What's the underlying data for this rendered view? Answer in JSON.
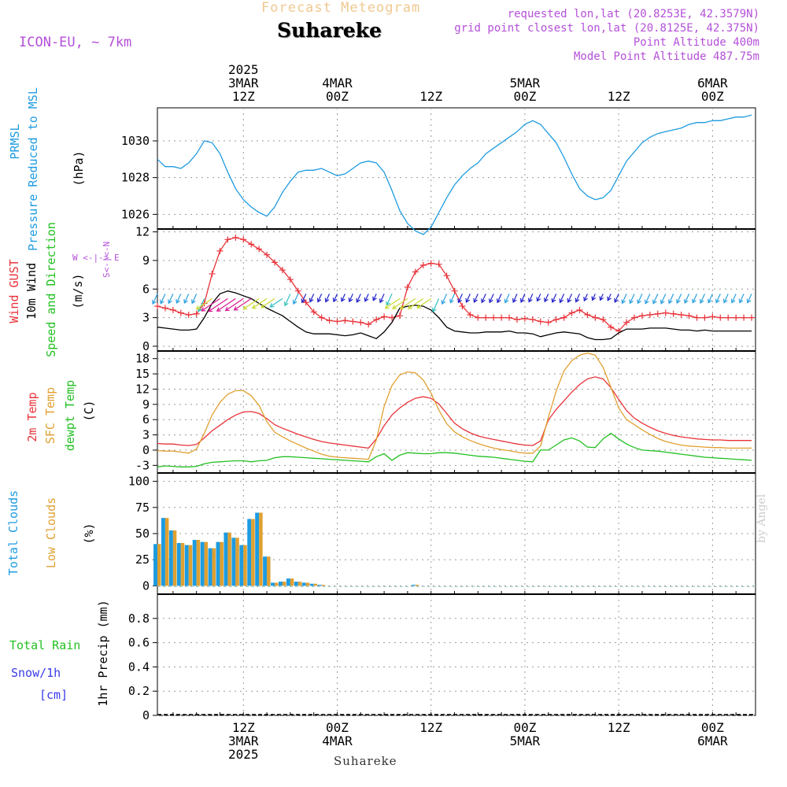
{
  "header": {
    "supertitle": "Forecast Meteogram",
    "title": "Suhareke",
    "model": "ICON-EU, ~ 7km",
    "info_lines": [
      "requested lon,lat (20.8253E, 42.3579N)",
      "grid point closest lon,lat (20.8125E, 42.375N)",
      "Point Altitude 400m",
      "Model Point Altitude 487.75m"
    ],
    "footer_title": "Suhareke",
    "watermark": "by Angel"
  },
  "colors": {
    "pressure": "#1e9be0",
    "gust": "#e8333a",
    "wind": "#000000",
    "temp2m": "#e8333a",
    "sfc": "#e0a030",
    "dewpt": "#22c022",
    "total_cloud": "#1e9be0",
    "low_cloud": "#e0a030",
    "rain": "#22c022",
    "snow": "#3a3ae8",
    "info": "#b450d8",
    "supertitle": "#f0c890"
  },
  "chart_data": [
    {
      "type": "line",
      "panel": "pressure",
      "ylabel_lines": [
        "PRMSL",
        "Pressure Reduced to MSL"
      ],
      "unit": "(hPa)",
      "ylim": [
        1025.2,
        1031.8
      ],
      "yticks": [
        1026,
        1028,
        1030
      ],
      "time_hours": [
        0,
        1,
        2,
        3,
        4,
        5,
        6,
        7,
        8,
        9,
        10,
        11,
        12,
        13,
        14,
        15,
        16,
        17,
        18,
        19,
        20,
        21,
        22,
        23,
        24,
        25,
        26,
        27,
        28,
        29,
        30,
        31,
        32,
        33,
        34,
        35,
        36,
        37,
        38,
        39,
        40,
        41,
        42,
        43,
        44,
        45,
        46,
        47,
        48,
        49,
        50,
        51,
        52,
        53,
        54,
        55,
        56,
        57,
        58,
        59,
        60,
        61,
        62,
        63,
        64,
        65,
        66,
        67,
        68,
        69,
        70,
        71,
        72,
        73,
        74,
        75,
        76
      ],
      "series": [
        {
          "values": [
            1029.0,
            1028.6,
            1028.6,
            1028.5,
            1028.8,
            1029.3,
            1030.0,
            1029.9,
            1029.3,
            1028.3,
            1027.4,
            1026.8,
            1026.4,
            1026.1,
            1025.9,
            1026.4,
            1027.2,
            1027.8,
            1028.3,
            1028.4,
            1028.4,
            1028.5,
            1028.3,
            1028.1,
            1028.2,
            1028.5,
            1028.8,
            1028.9,
            1028.8,
            1028.3,
            1027.3,
            1026.2,
            1025.5,
            1025.1,
            1024.9,
            1025.3,
            1026.1,
            1026.9,
            1027.6,
            1028.1,
            1028.5,
            1028.8,
            1029.3,
            1029.6,
            1029.9,
            1030.2,
            1030.5,
            1030.9,
            1031.1,
            1030.9,
            1030.4,
            1029.9,
            1029.1,
            1028.2,
            1027.4,
            1027.0,
            1026.8,
            1026.9,
            1027.3,
            1028.1,
            1028.9,
            1029.4,
            1029.9,
            1030.2,
            1030.4,
            1030.5,
            1030.6,
            1030.7,
            1030.9,
            1031.0,
            1031.0,
            1031.1,
            1031.1,
            1031.2,
            1031.3,
            1031.3,
            1031.4
          ]
        }
      ]
    },
    {
      "type": "line",
      "panel": "wind",
      "ylabel_lines": [
        "Wind GUST",
        "10m Wind",
        "Speed and Direction"
      ],
      "unit": "(m/s)",
      "compass": [
        "N",
        "W <-|-> E",
        "S"
      ],
      "ylim": [
        -0.5,
        12.3
      ],
      "yticks": [
        0,
        3,
        6,
        9,
        12
      ],
      "time_hours": [
        0,
        1,
        2,
        3,
        4,
        5,
        6,
        7,
        8,
        9,
        10,
        11,
        12,
        13,
        14,
        15,
        16,
        17,
        18,
        19,
        20,
        21,
        22,
        23,
        24,
        25,
        26,
        27,
        28,
        29,
        30,
        31,
        32,
        33,
        34,
        35,
        36,
        37,
        38,
        39,
        40,
        41,
        42,
        43,
        44,
        45,
        46,
        47,
        48,
        49,
        50,
        51,
        52,
        53,
        54,
        55,
        56,
        57,
        58,
        59,
        60,
        61,
        62,
        63,
        64,
        65,
        66,
        67,
        68,
        69,
        70,
        71,
        72,
        73,
        74,
        75,
        76
      ],
      "series": [
        {
          "name": "Wind GUST",
          "values": [
            4.2,
            4.0,
            3.8,
            3.5,
            3.3,
            3.4,
            4.5,
            7.6,
            10.0,
            11.2,
            11.4,
            11.2,
            10.7,
            10.2,
            9.6,
            8.8,
            8.0,
            7.0,
            5.8,
            4.6,
            3.6,
            3.0,
            2.7,
            2.6,
            2.7,
            2.6,
            2.5,
            2.3,
            2.8,
            3.1,
            3.0,
            3.2,
            6.2,
            7.8,
            8.5,
            8.7,
            8.6,
            7.4,
            5.8,
            4.2,
            3.3,
            3.0,
            3.0,
            3.0,
            3.0,
            3.0,
            2.8,
            2.9,
            2.8,
            2.6,
            2.5,
            2.8,
            3.0,
            3.5,
            3.8,
            3.3,
            3.0,
            2.8,
            2.0,
            1.6,
            2.5,
            3.0,
            3.2,
            3.3,
            3.4,
            3.5,
            3.4,
            3.3,
            3.2,
            3.0,
            3.0,
            3.1,
            3.0,
            3.0,
            3.0,
            3.0,
            3.0
          ]
        },
        {
          "name": "10m Wind",
          "values": [
            2.0,
            1.9,
            1.8,
            1.7,
            1.7,
            1.8,
            3.0,
            4.5,
            5.5,
            5.8,
            5.6,
            5.3,
            5.0,
            4.5,
            4.0,
            3.6,
            3.2,
            2.6,
            2.0,
            1.5,
            1.3,
            1.3,
            1.3,
            1.2,
            1.1,
            1.2,
            1.4,
            1.1,
            0.8,
            1.5,
            2.5,
            4.0,
            4.2,
            4.3,
            4.2,
            3.8,
            3.0,
            2.0,
            1.6,
            1.5,
            1.4,
            1.4,
            1.5,
            1.5,
            1.5,
            1.6,
            1.4,
            1.4,
            1.3,
            1.0,
            1.2,
            1.4,
            1.5,
            1.4,
            1.3,
            0.9,
            0.7,
            0.7,
            0.8,
            1.4,
            1.8,
            1.8,
            1.8,
            1.9,
            1.9,
            1.9,
            1.8,
            1.7,
            1.7,
            1.6,
            1.7,
            1.6,
            1.6,
            1.6,
            1.6,
            1.6,
            1.6
          ]
        }
      ]
    },
    {
      "type": "line",
      "panel": "temperature",
      "ylabel_lines": [
        "2m Temp",
        "SFC Temp",
        "dewpt Temp"
      ],
      "unit": "(C)",
      "ylim": [
        -4.5,
        19.5
      ],
      "yticks": [
        -3,
        0,
        3,
        6,
        9,
        12,
        15,
        18
      ],
      "time_hours": [
        0,
        1,
        2,
        3,
        4,
        5,
        6,
        7,
        8,
        9,
        10,
        11,
        12,
        13,
        14,
        15,
        16,
        17,
        18,
        19,
        20,
        21,
        22,
        23,
        24,
        25,
        26,
        27,
        28,
        29,
        30,
        31,
        32,
        33,
        34,
        35,
        36,
        37,
        38,
        39,
        40,
        41,
        42,
        43,
        44,
        45,
        46,
        47,
        48,
        49,
        50,
        51,
        52,
        53,
        54,
        55,
        56,
        57,
        58,
        59,
        60,
        61,
        62,
        63,
        64,
        65,
        66,
        67,
        68,
        69,
        70,
        71,
        72,
        73,
        74,
        75,
        76
      ],
      "series": [
        {
          "name": "2m Temp",
          "values": [
            1.3,
            1.2,
            1.2,
            1.0,
            0.9,
            1.1,
            2.4,
            3.8,
            4.9,
            6.0,
            6.9,
            7.5,
            7.6,
            7.2,
            6.2,
            5.0,
            4.3,
            3.7,
            3.1,
            2.6,
            2.1,
            1.7,
            1.4,
            1.2,
            1.0,
            0.8,
            0.6,
            0.4,
            2.2,
            4.8,
            6.9,
            8.3,
            9.4,
            10.2,
            10.5,
            10.2,
            9.1,
            7.2,
            5.3,
            4.2,
            3.4,
            2.8,
            2.4,
            2.1,
            1.8,
            1.5,
            1.2,
            1.0,
            0.9,
            1.8,
            5.9,
            8.0,
            9.7,
            11.4,
            12.9,
            14.0,
            14.4,
            14.0,
            12.3,
            10.0,
            7.8,
            6.3,
            5.3,
            4.5,
            3.8,
            3.3,
            2.9,
            2.6,
            2.4,
            2.2,
            2.1,
            2.0,
            2.0,
            1.9,
            1.9,
            1.9,
            1.9
          ]
        },
        {
          "name": "SFC Temp",
          "values": [
            -0.1,
            -0.2,
            -0.2,
            -0.4,
            -0.6,
            0.2,
            3.3,
            6.9,
            9.4,
            11.0,
            11.7,
            11.7,
            10.7,
            8.8,
            5.6,
            3.5,
            2.6,
            1.8,
            1.1,
            0.4,
            -0.2,
            -0.8,
            -1.2,
            -1.4,
            -1.5,
            -1.6,
            -1.7,
            -1.8,
            2.0,
            8.6,
            12.7,
            14.8,
            15.4,
            15.2,
            13.8,
            11.2,
            7.9,
            5.2,
            3.6,
            2.6,
            1.9,
            1.3,
            0.8,
            0.4,
            0.1,
            -0.1,
            -0.4,
            -0.6,
            -0.6,
            0.8,
            6.4,
            11.6,
            15.6,
            17.6,
            18.7,
            19.1,
            18.7,
            16.3,
            12.4,
            8.3,
            6.0,
            5.0,
            4.0,
            3.1,
            2.3,
            1.7,
            1.3,
            1.0,
            0.8,
            0.7,
            0.6,
            0.5,
            0.5,
            0.4,
            0.4,
            0.4,
            0.4
          ]
        },
        {
          "name": "dewpt Temp",
          "values": [
            -3.3,
            -3.1,
            -3.2,
            -3.3,
            -3.3,
            -3.2,
            -2.7,
            -2.4,
            -2.3,
            -2.2,
            -2.1,
            -2.1,
            -2.3,
            -2.1,
            -2.0,
            -1.5,
            -1.3,
            -1.3,
            -1.4,
            -1.5,
            -1.6,
            -1.7,
            -1.8,
            -1.9,
            -2.0,
            -2.1,
            -2.2,
            -2.3,
            -1.3,
            -0.7,
            -2.0,
            -1.0,
            -0.5,
            -0.6,
            -0.7,
            -0.7,
            -0.5,
            -0.5,
            -0.6,
            -0.8,
            -1.0,
            -1.2,
            -1.3,
            -1.4,
            -1.6,
            -1.8,
            -2.0,
            -2.2,
            -2.3,
            0.0,
            0.0,
            1.0,
            2.0,
            2.4,
            1.8,
            0.6,
            0.5,
            2.2,
            3.3,
            2.2,
            1.2,
            0.5,
            0.0,
            -0.1,
            -0.2,
            -0.4,
            -0.6,
            -0.8,
            -1.0,
            -1.2,
            -1.4,
            -1.5,
            -1.6,
            -1.7,
            -1.8,
            -1.9,
            -2.0
          ]
        }
      ]
    },
    {
      "type": "bar",
      "panel": "clouds",
      "ylabel_lines": [
        "Total Clouds",
        "Low Clouds"
      ],
      "unit": "(%)",
      "ylim": [
        -8,
        108
      ],
      "yticks": [
        0,
        25,
        50,
        75,
        100
      ],
      "time_hours": [
        0,
        1,
        2,
        3,
        4,
        5,
        6,
        7,
        8,
        9,
        10,
        11,
        12,
        13,
        14,
        15,
        16,
        17,
        18,
        19,
        20,
        21,
        22,
        23,
        24,
        25,
        26,
        27,
        28,
        29,
        30,
        31,
        32,
        33,
        34,
        35,
        36,
        37,
        38,
        39,
        40,
        41,
        42,
        43,
        44,
        45,
        46,
        47,
        48,
        49,
        50,
        51,
        52,
        53,
        54,
        55,
        56,
        57,
        58,
        59,
        60,
        61,
        62,
        63,
        64,
        65,
        66,
        67,
        68,
        69,
        70,
        71,
        72,
        73,
        74,
        75
      ],
      "series": [
        {
          "name": "Total Clouds",
          "values": [
            40,
            65,
            53,
            41,
            39,
            44,
            42,
            36,
            42,
            51,
            46,
            39,
            64,
            70,
            28,
            3,
            4,
            7,
            4,
            3,
            2,
            1,
            0,
            0,
            0,
            0,
            0,
            0,
            0,
            0,
            0,
            0,
            0,
            1,
            0,
            0,
            0,
            0,
            0,
            0,
            0,
            0,
            0,
            0,
            0,
            0,
            0,
            0,
            0,
            0,
            0,
            0,
            0,
            0,
            0,
            0,
            0,
            0,
            0,
            0,
            0,
            0,
            0,
            0,
            0,
            0,
            0,
            0,
            0,
            0,
            0,
            0,
            0,
            0,
            0,
            0
          ]
        },
        {
          "name": "Low Clouds",
          "values": [
            40,
            65,
            53,
            41,
            39,
            44,
            42,
            36,
            42,
            51,
            46,
            39,
            64,
            70,
            28,
            3,
            4,
            7,
            4,
            3,
            2,
            1,
            0,
            0,
            0,
            0,
            0,
            0,
            0,
            0,
            0,
            0,
            0,
            1,
            0,
            0,
            0,
            0,
            0,
            0,
            0,
            0,
            0,
            0,
            0,
            0,
            0,
            0,
            0,
            0,
            0,
            0,
            0,
            0,
            0,
            0,
            0,
            0,
            0,
            0,
            0,
            0,
            0,
            0,
            0,
            0,
            0,
            0,
            0,
            0,
            0,
            0,
            0,
            0,
            0,
            0
          ]
        }
      ]
    },
    {
      "type": "bar",
      "panel": "precip",
      "ylabel_lines": [
        "Total Rain",
        "Snow/1h",
        "[cm]"
      ],
      "unit": "1hr Precip (mm)",
      "ylim": [
        0,
        1.0
      ],
      "yticks": [
        0,
        0.2,
        0.4,
        0.6,
        0.8
      ],
      "yticklabels": [
        "0",
        "0.2",
        "0.4",
        "0.6",
        "0.8"
      ],
      "series": [
        {
          "name": "Total Rain",
          "values": []
        },
        {
          "name": "Snow/1h",
          "values": []
        }
      ]
    }
  ],
  "time_axis": {
    "top_labels": [
      {
        "hour": 11,
        "lines": [
          "2025",
          "3MAR",
          "12Z"
        ]
      },
      {
        "hour": 23,
        "lines": [
          "4MAR",
          "00Z"
        ]
      },
      {
        "hour": 35,
        "lines": [
          "12Z"
        ]
      },
      {
        "hour": 47,
        "lines": [
          "5MAR",
          "00Z"
        ]
      },
      {
        "hour": 59,
        "lines": [
          "12Z"
        ]
      },
      {
        "hour": 71,
        "lines": [
          "6MAR",
          "00Z"
        ]
      }
    ],
    "bottom_labels": [
      {
        "hour": 11,
        "lines": [
          "12Z",
          "3MAR",
          "2025"
        ]
      },
      {
        "hour": 23,
        "lines": [
          "00Z",
          "4MAR"
        ]
      },
      {
        "hour": 35,
        "lines": [
          "12Z"
        ]
      },
      {
        "hour": 47,
        "lines": [
          "00Z",
          "5MAR"
        ]
      },
      {
        "hour": 59,
        "lines": [
          "12Z"
        ]
      },
      {
        "hour": 71,
        "lines": [
          "00Z",
          "6MAR"
        ]
      }
    ]
  }
}
